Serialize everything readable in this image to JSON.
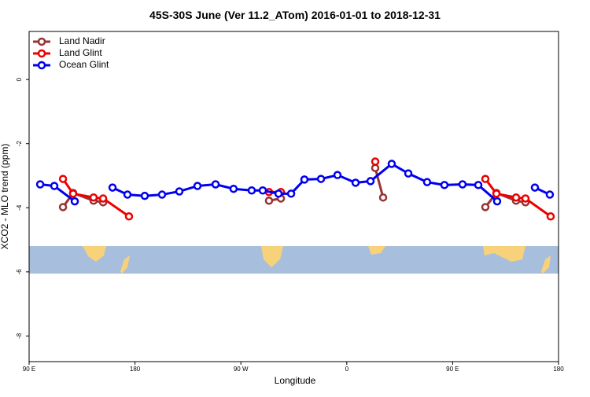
{
  "chart_data": {
    "type": "line",
    "title": "45S-30S June (Ver 11.2_ATom)   2016-01-01 to 2018-12-31",
    "xlabel": "Longitude",
    "ylabel": "XCO2 - MLO trend (ppm)",
    "xlim": [
      90,
      540
    ],
    "ylim": [
      -8.8,
      1.5
    ],
    "xticks": [
      {
        "value": 90,
        "label": "90 E"
      },
      180,
      {
        "value": 270,
        "label": "90 W"
      },
      {
        "value": 360,
        "label": "0"
      },
      {
        "value": 450,
        "label": "90 E"
      },
      {
        "value": 540,
        "label": "180"
      }
    ],
    "yticks": [
      0,
      -2,
      -4,
      -6,
      -8
    ],
    "legend": "top-left",
    "series": [
      {
        "name": "Land Nadir",
        "color": "#993333",
        "x": [
          118.8,
          127.4,
          144.8,
          152.9,
          null,
          293.9,
          304.0,
          null,
          384.2,
          390.9,
          null,
          477.8,
          487.2,
          503.9,
          511.9
        ],
        "values": [
          -3.98,
          -3.54,
          -3.78,
          -3.83,
          null,
          -3.78,
          -3.71,
          null,
          -2.76,
          -3.68,
          null,
          -3.98,
          -3.54,
          -3.78,
          -3.83
        ]
      },
      {
        "name": "Land Glint",
        "color": "#ee0000",
        "x": [
          118.8,
          127.4,
          144.8,
          152.9,
          174.9,
          null,
          293.9,
          304.0,
          null,
          384.2,
          null,
          477.8,
          487.2,
          503.9,
          511.9,
          533.3
        ],
        "values": [
          -3.1,
          -3.56,
          -3.68,
          -3.71,
          -4.27,
          null,
          -3.51,
          -3.51,
          null,
          -2.56,
          null,
          -3.1,
          -3.56,
          -3.68,
          -3.71,
          -4.27
        ]
      },
      {
        "name": "Ocean Glint",
        "color": "#0000ee",
        "x": [
          99.4,
          111.4,
          128.8,
          null,
          160.9,
          173.6,
          188.3,
          203.0,
          217.7,
          233.1,
          248.5,
          263.8,
          279.2,
          288.6,
          302.0,
          312.7,
          324.0,
          338.1,
          352.1,
          367.5,
          380.2,
          398.2,
          412.3,
          428.3,
          443.0,
          458.4,
          471.8,
          487.8,
          null,
          519.9,
          532.6
        ],
        "values": [
          -3.27,
          -3.32,
          -3.8,
          null,
          -3.37,
          -3.59,
          -3.63,
          -3.59,
          -3.49,
          -3.32,
          -3.27,
          -3.41,
          -3.46,
          -3.46,
          -3.56,
          -3.56,
          -3.12,
          -3.1,
          -2.98,
          -3.22,
          -3.17,
          -2.63,
          -2.93,
          -3.2,
          -3.29,
          -3.27,
          -3.29,
          -3.8,
          null,
          -3.37,
          -3.59
        ]
      }
    ]
  }
}
